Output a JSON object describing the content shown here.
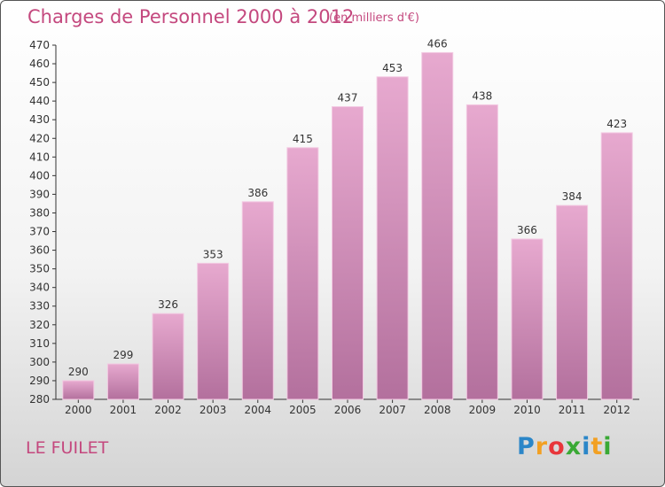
{
  "title": "Charges de Personnel 2000 à 2012",
  "subtitle": "(en milliers d'€)",
  "commune": "LE FUILET",
  "logo": {
    "letters": [
      "P",
      "r",
      "o",
      "x",
      "i",
      "t",
      "i"
    ],
    "colors": [
      "#2b86c8",
      "#f2a023",
      "#e8363b",
      "#3aa935",
      "#2b86c8",
      "#f2a023",
      "#3aa935"
    ]
  },
  "colors": {
    "bar": "#d590bc",
    "bar_light": "#e7a9cf",
    "bar_dark": "#b5709c",
    "title": "#c4487e"
  },
  "chart_data": {
    "type": "bar",
    "title": "Charges de Personnel 2000 à 2012",
    "categories": [
      "2000",
      "2001",
      "2002",
      "2003",
      "2004",
      "2005",
      "2006",
      "2007",
      "2008",
      "2009",
      "2010",
      "2011",
      "2012"
    ],
    "values": [
      290,
      299,
      326,
      353,
      386,
      415,
      437,
      453,
      466,
      438,
      366,
      384,
      423
    ],
    "ylim": [
      280,
      470
    ],
    "yticks": [
      280,
      290,
      300,
      310,
      320,
      330,
      340,
      350,
      360,
      370,
      380,
      390,
      400,
      410,
      420,
      430,
      440,
      450,
      460,
      470
    ],
    "grid": false,
    "data_labels": true
  }
}
